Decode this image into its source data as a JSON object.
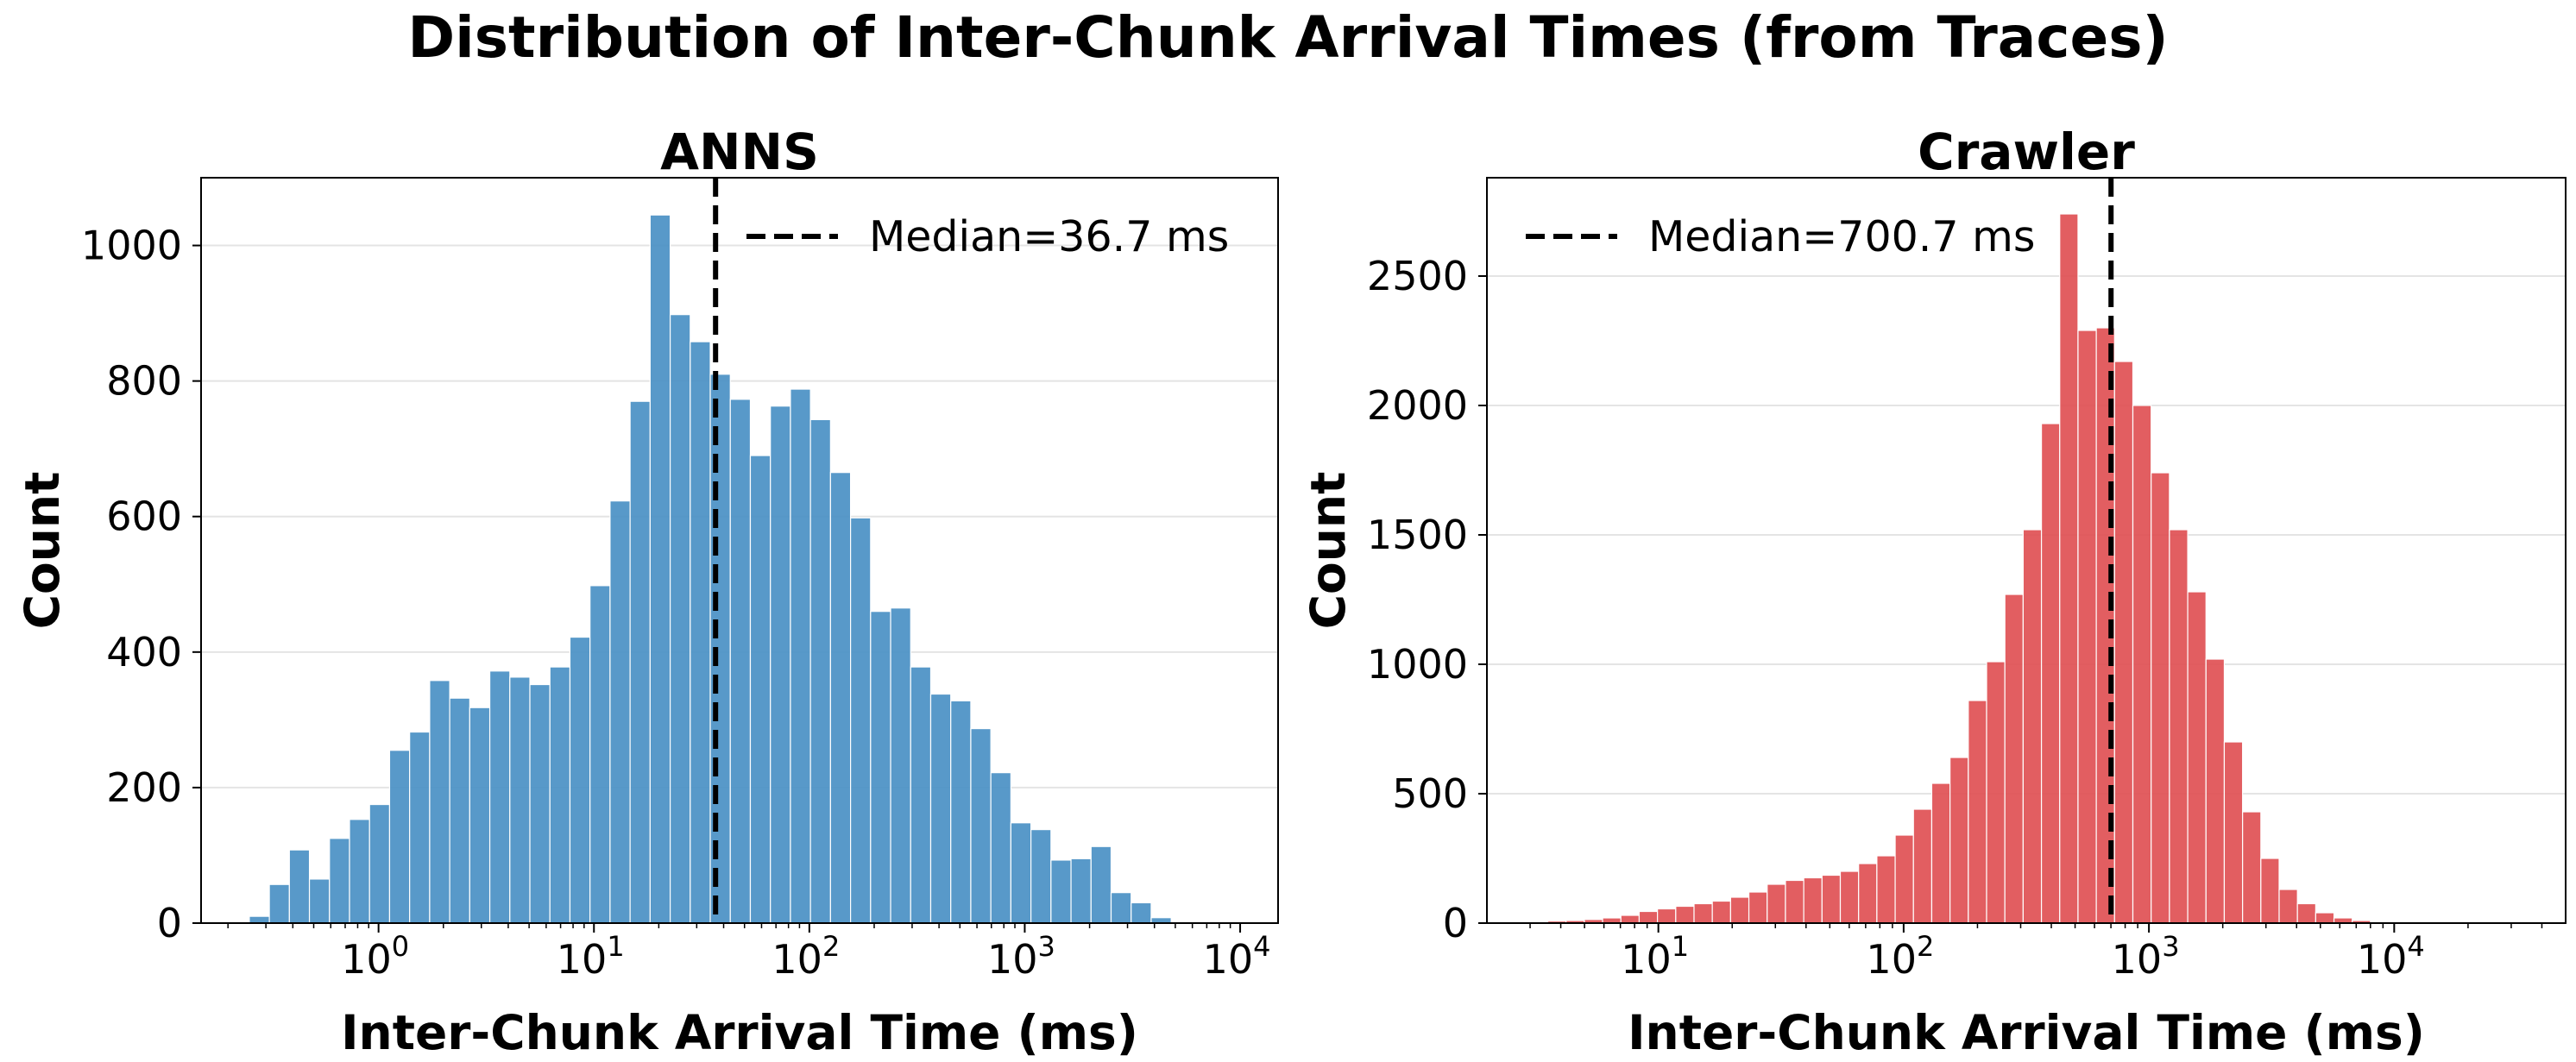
{
  "figure": {
    "suptitle": "Distribution of Inter-Chunk Arrival Times (from Traces)"
  },
  "chart_data": [
    {
      "type": "bar",
      "title": "ANNS",
      "xlabel": "Inter-Chunk Arrival Time (ms)",
      "ylabel": "Count",
      "xscale": "log",
      "xlim": [
        0.15,
        15000
      ],
      "ylim": [
        0,
        1100
      ],
      "yticks": [
        0,
        200,
        400,
        600,
        800,
        1000
      ],
      "xticks_exp": [
        0,
        1,
        2,
        3,
        4
      ],
      "color": "#4a90c4",
      "bin_log_range": [
        -0.6,
        3.68
      ],
      "values": [
        10,
        57,
        108,
        65,
        125,
        153,
        175,
        255,
        282,
        358,
        332,
        318,
        372,
        363,
        352,
        378,
        422,
        498,
        623,
        770,
        1045,
        898,
        858,
        810,
        773,
        690,
        763,
        788,
        743,
        665,
        598,
        460,
        465,
        378,
        338,
        328,
        287,
        222,
        148,
        138,
        93,
        95,
        113,
        45,
        30,
        8
      ],
      "median": {
        "value": 36.7,
        "label": "Median=36.7 ms"
      },
      "legend": "top-right",
      "grid": "y"
    },
    {
      "type": "bar",
      "title": "Crawler",
      "xlabel": "Inter-Chunk Arrival Time (ms)",
      "ylabel": "Count",
      "xscale": "log",
      "xlim": [
        2,
        50000
      ],
      "ylim": [
        0,
        2880
      ],
      "yticks": [
        0,
        500,
        1000,
        1500,
        2000,
        2500
      ],
      "xticks_exp": [
        1,
        2,
        3,
        4
      ],
      "color": "#e05054",
      "bin_log_range": [
        0.4,
        4.5
      ],
      "values": [
        2,
        4,
        8,
        10,
        14,
        20,
        30,
        45,
        55,
        65,
        75,
        85,
        100,
        120,
        150,
        165,
        175,
        185,
        200,
        230,
        260,
        340,
        440,
        540,
        640,
        860,
        1010,
        1270,
        1520,
        1930,
        2740,
        2290,
        2300,
        2170,
        2000,
        1740,
        1520,
        1280,
        1020,
        700,
        430,
        250,
        130,
        75,
        40,
        20,
        10,
        5,
        3,
        2,
        1,
        1,
        1,
        0,
        0
      ],
      "median": {
        "value": 700.7,
        "label": "Median=700.7 ms"
      },
      "legend": "top-left",
      "grid": "y"
    }
  ]
}
